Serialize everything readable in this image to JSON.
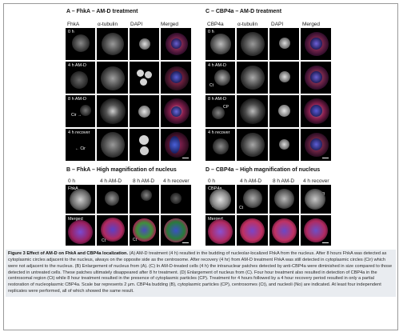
{
  "panelA": {
    "title": "A – FhkA – AM-D treatment",
    "columns": [
      "FhkA",
      "α-tubulin",
      "DAPI",
      "Merged"
    ],
    "rows": [
      "0 h",
      "4 h AM-D",
      "8 h AM-D",
      "4 h recover"
    ],
    "annotations": {
      "r2": "Cir →",
      "r3": "← Cir"
    }
  },
  "panelC": {
    "title": "C – CBP4a – AM-D treatment",
    "columns": [
      "CBP4a",
      "α-tubulin",
      "DAPI",
      "Merged"
    ],
    "rows": [
      "0 h",
      "4 h AM-D",
      "8 h AM-D",
      "4 h recover"
    ],
    "annotations": {
      "r1": "Ct",
      "r2": "CP"
    }
  },
  "panelB": {
    "title": "B – FhkA – High magnification of nucleus",
    "columns": [
      "0 h",
      "4 h AM-D",
      "8 h AM-D",
      "4 h recover"
    ],
    "row_labels": [
      "FhkA",
      "Merged"
    ],
    "annotations": {
      "b1": "B",
      "ct1": "Ct",
      "b2": "B",
      "ct2": "Ct",
      "b3": "B"
    }
  },
  "panelD": {
    "title": "D – CBP4a – High magnification of nucleus",
    "columns": [
      "0 h",
      "4 h AM-D",
      "8 h AM-D",
      "4 h recover"
    ],
    "row_labels": [
      "CBP4a",
      "Merged"
    ],
    "annotations": {
      "no": "No",
      "ct": "Ct",
      "b": "B"
    }
  },
  "caption": {
    "label": "Figure 3",
    "title": "Effect of AM-D on FhkA and CBP4a localization.",
    "text": "(A) AM-D treatment (4 h) resulted in the budding of nucleolar-localized FhkA from the nucleus. After 8 hours FhkA was detected as cytoplasmic circles adjacent to the nucleus, always on the opposite side as the centrosome. After recovery (4 hr) from AM-D treatment FhkA was still detected in cytoplasmic circles (Cir) which were not adjacent to the nucleus. (B) Enlargement of nucleus from (A). (C) In AM-D-treated cells (4 h) the intranuclear patches detected by anti-CBP4a were diminished in size compared to those detected in untreated cells. These patches ultimately disappeared after 8 hr treatment. (D) Enlargement of nucleus from (C). Four hour treatment also resulted in detection of CBP4a in the centrosomal region (Ct) while 8 hour treatment resulted in the presence of cytoplasmic particles (CP). Treatment for 4 hours followed by a 4 hour recovery period resulted in only a partial restoration of nucleoplasmic CBP4a. Scale bar represents 2 μm. CBP4a budding (B), cytoplasmic particles (CP), centrosomes (Ct), and nucleoli (No) are indicated. At least four independent replicates were performed, all of which showed the same result."
  }
}
